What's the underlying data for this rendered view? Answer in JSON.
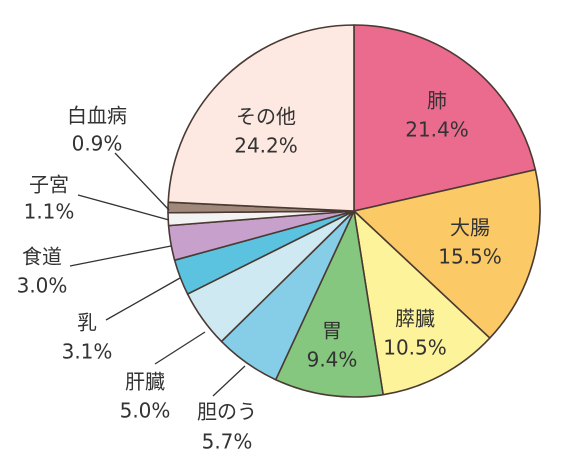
{
  "chart_data": {
    "type": "pie",
    "title": "",
    "slices": [
      {
        "name": "肺",
        "value": 21.4,
        "label_value": "21.4%",
        "color": "#EB6B8E"
      },
      {
        "name": "大腸",
        "value": 15.5,
        "label_value": "15.5%",
        "color": "#FBC965"
      },
      {
        "name": "膵臓",
        "value": 10.5,
        "label_value": "10.5%",
        "color": "#FDF39A"
      },
      {
        "name": "胃",
        "value": 9.4,
        "label_value": "9.4%",
        "color": "#86C77F"
      },
      {
        "name": "胆のう",
        "value": 5.7,
        "label_value": "5.7%",
        "color": "#86CDE8"
      },
      {
        "name": "肝臓",
        "value": 5.0,
        "label_value": "5.0%",
        "color": "#CFE9F2"
      },
      {
        "name": "乳",
        "value": 3.1,
        "label_value": "3.1%",
        "color": "#5BC3E0"
      },
      {
        "name": "食道",
        "value": 3.0,
        "label_value": "3.0%",
        "color": "#C8A0CC"
      },
      {
        "name": "子宮",
        "value": 1.1,
        "label_value": "1.1%",
        "color": "#F3F3F3"
      },
      {
        "name": "白血病",
        "value": 0.9,
        "label_value": "0.9%",
        "color": "#A0897A"
      },
      {
        "name": "その他",
        "value": 24.2,
        "label_value": "24.2%",
        "color": "#FDE9E1"
      }
    ]
  }
}
